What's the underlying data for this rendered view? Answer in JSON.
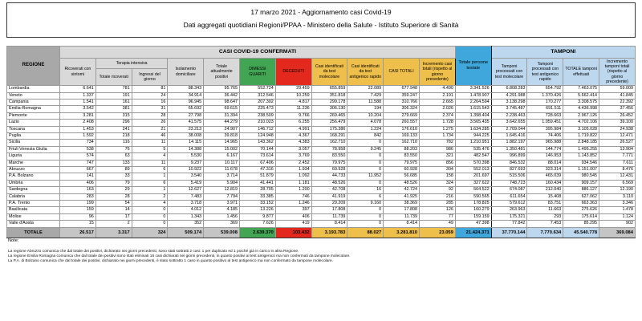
{
  "title": {
    "line1": "17 marzo 2021 - Aggiornamento casi Covid-19",
    "line2": "Dati aggregati quotidiani Regioni/PPAA - Ministero della Salute - Istituto Superiore di Sanità"
  },
  "colors": {
    "green": "#42a553",
    "red": "#e3291e",
    "yellow": "#efbf4b",
    "blue": "#3fa7dc",
    "light_blue": "#bdd7ee",
    "header_gray": "#d9d9d9",
    "regione_gray": "#a8a8a8",
    "totale_gray": "#c5c5c5"
  },
  "table": {
    "group_headers": {
      "regione": "REGIONE",
      "casi": "CASI COVID-19 CONFERMATI",
      "terapia": "Terapia intensiva",
      "persone_testate": "Totale persone testate",
      "tamponi": "TAMPONI"
    },
    "column_headers": {
      "ricoverati": "Ricoverati con sintomi",
      "terapia_totale": "Totale ricoverati",
      "terapia_ingressi": "Ingressi del giorno",
      "isolamento": "Isolamento domiciliare",
      "attualmente_positivi": "Totale attualmente positivi",
      "dimessi": "DIMESSI GUARITI",
      "deceduti": "DECEDUTI",
      "casi_molecolare": "Casi identificati da test molecolare",
      "casi_antigenico": "Casi identificati da test antigenico rapido",
      "casi_totali": "CASI TOTALI",
      "incremento_casi": "Incremento casi totali (rispetto al giorno precedente)",
      "tamponi_molecolare": "Tamponi processati con test molecolare",
      "tamponi_antigenico": "Tamponi processati con test antigenico rapido",
      "tamponi_totale": "TOTALE tamponi effettuati",
      "incremento_tamponi": "Incremento tamponi totali (rispetto al giorno precedente)"
    },
    "rows": [
      {
        "region": "Lombardia",
        "values": [
          "6.641",
          "781",
          "81",
          "88.343",
          "95.765",
          "552.724",
          "29.459",
          "655.859",
          "22.089",
          "677.948",
          "4.490",
          "3.341.526",
          "6.808.283",
          "654.792",
          "7.463.075",
          "59.009"
        ]
      },
      {
        "region": "Veneto",
        "values": [
          "1.337",
          "191",
          "24",
          "34.914",
          "36.442",
          "312.546",
          "10.259",
          "351.818",
          "7.429",
          "359.247",
          "2.191",
          "1.478.907",
          "4.291.988",
          "1.370.426",
          "5.662.414",
          "41.845"
        ]
      },
      {
        "region": "Campania",
        "values": [
          "1.541",
          "161",
          "16",
          "96.945",
          "98.647",
          "207.302",
          "4.817",
          "299.178",
          "11.588",
          "310.766",
          "2.665",
          "2.264.594",
          "3.138.298",
          "170.277",
          "3.308.575",
          "22.392"
        ]
      },
      {
        "region": "Emilia-Romagna",
        "values": [
          "3.542",
          "381",
          "31",
          "65.692",
          "69.615",
          "225.473",
          "11.236",
          "306.130",
          "194",
          "306.324",
          "2.026",
          "1.615.543",
          "3.745.487",
          "691.511",
          "4.436.998",
          "37.456"
        ]
      },
      {
        "region": "Piemonte",
        "values": [
          "3.281",
          "315",
          "28",
          "27.798",
          "31.394",
          "238.509",
          "9.766",
          "269.465",
          "10.204",
          "279.669",
          "2.374",
          "1.398.404",
          "2.238.463",
          "728.663",
          "2.967.126",
          "26.452"
        ]
      },
      {
        "region": "Lazio",
        "values": [
          "2.408",
          "296",
          "26",
          "41.575",
          "44.279",
          "210.023",
          "6.255",
          "256.479",
          "4.078",
          "260.557",
          "1.728",
          "3.565.435",
          "3.642.655",
          "1.059.451",
          "4.702.106",
          "39.100"
        ]
      },
      {
        "region": "Toscana",
        "values": [
          "1.453",
          "241",
          "21",
          "23.213",
          "24.907",
          "146.712",
          "4.991",
          "175.386",
          "1.224",
          "176.610",
          "1.275",
          "1.634.285",
          "2.709.044",
          "395.984",
          "3.105.028",
          "24.938"
        ]
      },
      {
        "region": "Puglia",
        "values": [
          "1.592",
          "218",
          "46",
          "38.008",
          "39.818",
          "124.948",
          "4.367",
          "168.291",
          "842",
          "169.133",
          "1.734",
          "944.225",
          "1.645.416",
          "74.406",
          "1.719.822",
          "12.471"
        ]
      },
      {
        "region": "Sicilia",
        "values": [
          "734",
          "116",
          "11",
          "14.115",
          "14.965",
          "143.362",
          "4.383",
          "162.710",
          "0",
          "162.710",
          "782",
          "1.210.951",
          "1.882.197",
          "965.988",
          "2.848.185",
          "26.527"
        ]
      },
      {
        "region": "Friuli Venezia Giulia",
        "values": [
          "538",
          "76",
          "5",
          "14.388",
          "15.002",
          "70.144",
          "3.057",
          "78.958",
          "9.245",
          "88.203",
          "986",
          "535.476",
          "1.350.481",
          "144.774",
          "1.495.255",
          "13.904"
        ]
      },
      {
        "region": "Liguria",
        "values": [
          "574",
          "63",
          "4",
          "5.530",
          "6.167",
          "73.614",
          "3.769",
          "83.550",
          "0",
          "83.550",
          "321",
          "482.547",
          "996.899",
          "146.953",
          "1.143.852",
          "7.771"
        ]
      },
      {
        "region": "Marche",
        "values": [
          "747",
          "133",
          "11",
          "9.237",
          "10.117",
          "67.406",
          "2.452",
          "79.975",
          "0",
          "79.975",
          "856",
          "570.398",
          "846.532",
          "88.014",
          "934.546",
          "7.611"
        ]
      },
      {
        "region": "Abruzzo",
        "values": [
          "667",
          "89",
          "6",
          "10.922",
          "11.678",
          "47.316",
          "1.934",
          "60.928",
          "0",
          "60.928",
          "304",
          "552.013",
          "827.693",
          "323.314",
          "1.151.007",
          "8.476"
        ]
      },
      {
        "region": "P.A. Bolzano",
        "values": [
          "141",
          "33",
          "1",
          "3.540",
          "3.714",
          "51.879",
          "1.092",
          "44.733",
          "11.952",
          "56.685",
          "158",
          "201.697",
          "515.506",
          "465.039",
          "980.545",
          "12.431"
        ]
      },
      {
        "region": "Umbria",
        "values": [
          "406",
          "79",
          "6",
          "5.419",
          "5.904",
          "41.441",
          "1.181",
          "48.526",
          "0",
          "48.526",
          "324",
          "327.622",
          "748.723",
          "160.434",
          "909.157",
          "6.569"
        ]
      },
      {
        "region": "Sardegna",
        "values": [
          "163",
          "29",
          "1",
          "12.627",
          "12.819",
          "28.705",
          "1.200",
          "42.708",
          "16",
          "42.724",
          "92",
          "564.522",
          "674.087",
          "212.040",
          "886.127",
          "12.190"
        ]
      },
      {
        "region": "Calabria",
        "values": [
          "283",
          "28",
          "2",
          "7.483",
          "7.794",
          "33.385",
          "746",
          "41.919",
          "6",
          "41.925",
          "216",
          "590.565",
          "611.654",
          "15.408",
          "627.062",
          "3.110"
        ]
      },
      {
        "region": "P.A. Trento",
        "values": [
          "199",
          "54",
          "4",
          "3.718",
          "3.971",
          "33.152",
          "1.246",
          "29.209",
          "9.160",
          "38.369",
          "285",
          "178.825",
          "579.612",
          "83.751",
          "663.363",
          "3.346"
        ]
      },
      {
        "region": "Basilicata",
        "values": [
          "159",
          "14",
          "0",
          "4.012",
          "4.185",
          "13.226",
          "397",
          "17.808",
          "0",
          "17.808",
          "126",
          "160.279",
          "263.963",
          "11.663",
          "275.626",
          "1.478"
        ]
      },
      {
        "region": "Molise",
        "values": [
          "96",
          "17",
          "0",
          "1.343",
          "1.456",
          "9.877",
          "406",
          "11.739",
          "0",
          "11.739",
          "77",
          "159.159",
          "175.321",
          "293",
          "175.614",
          "1.124"
        ]
      },
      {
        "region": "Valle d'Aosta",
        "values": [
          "15",
          "2",
          "0",
          "352",
          "369",
          "7.626",
          "419",
          "8.414",
          "0",
          "8.414",
          "49",
          "47.398",
          "77.842",
          "7.453",
          "85.295",
          "902"
        ]
      }
    ],
    "totale": {
      "label": "TOTALE",
      "values": [
        "26.517",
        "3.317",
        "324",
        "509.174",
        "539.008",
        "2.639.370",
        "103.432",
        "3.193.783",
        "88.027",
        "3.281.810",
        "23.059",
        "21.424.371",
        "37.770.144",
        "7.770.634",
        "45.540.778",
        "369.084"
      ]
    }
  },
  "notes": {
    "heading": "Note:",
    "lines": [
      "La regione Abruzzo comunica che dal totale dei positivi, dichiarato nei giorni precedenti, sono stati sottratti 2 casi: 1 per duplicato ed 1 poiché già in carico in altra Regione.",
      "La regione Emilia Romagna comunica che dal totale dei positivi sono stati eliminati 16 casi dichiarati nei giorni precedenti, in quanto positivi al test antigenico ma non confermati da tampone molecolare.",
      "La P.A. di Bolzano comunica che dal totale dei positivi, dichiarato nei giorni precedenti, è stato sottratto 1 caso in quanto positivo al test antigenico ma non confermato da tampone molecolare."
    ]
  }
}
